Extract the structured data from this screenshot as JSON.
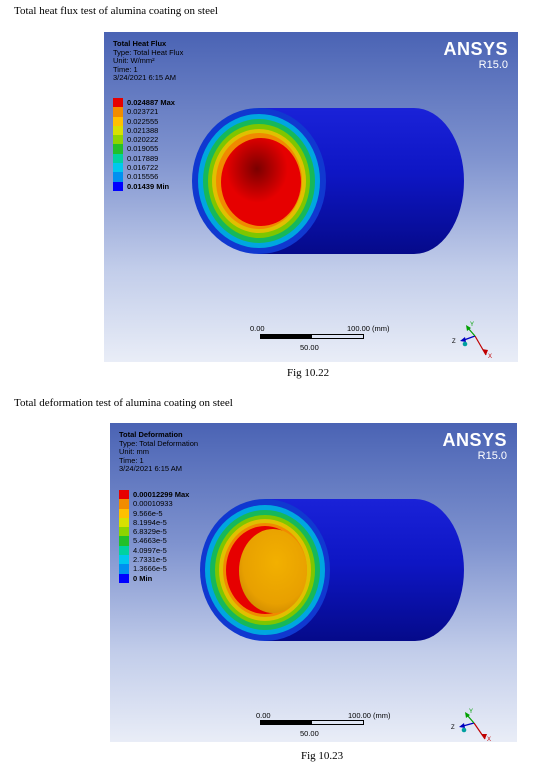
{
  "figures": [
    {
      "heading": "Total heat flux test of alumina coating on steel",
      "caption": "Fig 10.22",
      "result_title": "Total Heat Flux",
      "type_line": "Type: Total Heat Flux",
      "unit_line": "Unit: W/mm²",
      "time_line": "Time: 1",
      "date_line": "3/24/2021 6:15 AM",
      "legend": [
        {
          "value": "0.024887 Max",
          "color": "#e60000",
          "bold": true
        },
        {
          "value": "0.023721",
          "color": "#f28c00",
          "bold": false
        },
        {
          "value": "0.022555",
          "color": "#ffc000",
          "bold": false
        },
        {
          "value": "0.021388",
          "color": "#d8e000",
          "bold": false
        },
        {
          "value": "0.020222",
          "color": "#8ed400",
          "bold": false
        },
        {
          "value": "0.019055",
          "color": "#22c02a",
          "bold": false
        },
        {
          "value": "0.017889",
          "color": "#00d2a0",
          "bold": false
        },
        {
          "value": "0.016722",
          "color": "#00c8ee",
          "bold": false
        },
        {
          "value": "0.015556",
          "color": "#0090f0",
          "bold": false
        },
        {
          "value": "0.01439 Min",
          "color": "#0000ff",
          "bold": true
        }
      ],
      "brand": "ANSYS",
      "version": "R15.0",
      "scale_start": "0.00",
      "scale_end": "100.00 (mm)",
      "scale_mid": "50.00",
      "inner_color": "#e60000"
    },
    {
      "heading": "Total deformation test of alumina coating on steel",
      "caption": "Fig 10.23",
      "result_title": "Total Deformation",
      "type_line": "Type: Total Deformation",
      "unit_line": "Unit: mm",
      "time_line": "Time: 1",
      "date_line": "3/24/2021 6:15 AM",
      "legend": [
        {
          "value": "0.00012299 Max",
          "color": "#e60000",
          "bold": true
        },
        {
          "value": "0.00010933",
          "color": "#f28c00",
          "bold": false
        },
        {
          "value": "9.566e-5",
          "color": "#ffc000",
          "bold": false
        },
        {
          "value": "8.1994e-5",
          "color": "#d8e000",
          "bold": false
        },
        {
          "value": "6.8329e-5",
          "color": "#8ed400",
          "bold": false
        },
        {
          "value": "5.4663e-5",
          "color": "#22c02a",
          "bold": false
        },
        {
          "value": "4.0997e-5",
          "color": "#00d2a0",
          "bold": false
        },
        {
          "value": "2.7331e-5",
          "color": "#00c8ee",
          "bold": false
        },
        {
          "value": "1.3666e-5",
          "color": "#0090f0",
          "bold": false
        },
        {
          "value": "0 Min",
          "color": "#0000ff",
          "bold": true
        }
      ],
      "brand": "ANSYS",
      "version": "R15.0",
      "scale_start": "0.00",
      "scale_end": "100.00 (mm)",
      "scale_mid": "50.00",
      "inner_color": "#f0a800"
    }
  ]
}
